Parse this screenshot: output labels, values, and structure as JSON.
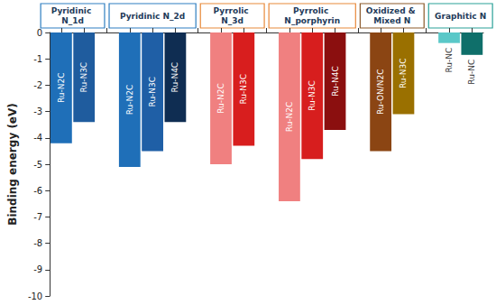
{
  "chart_data": {
    "type": "bar",
    "y_label": "Binding energy (eV)",
    "ylim": [
      -10,
      0
    ],
    "yticks": [
      -10,
      -9,
      -8,
      -7,
      -6,
      -5,
      -4,
      -3,
      -2,
      -1,
      0
    ],
    "grid": false,
    "tick_labels": "y",
    "data_labels": true,
    "groups": [
      {
        "name": "Pyridinic N_1d",
        "color": "#2f7fc1",
        "categories": [
          "Ru-N2C",
          "Ru-N3C"
        ],
        "values": [
          -4.2,
          -3.4
        ],
        "colors": [
          "#1f6fb8",
          "#1f5c9e"
        ]
      },
      {
        "name": "Pyridinic N_2d",
        "color": "#2f7fc1",
        "categories": [
          "Ru-N2C",
          "Ru-N3C",
          "Ru-N4C"
        ],
        "values": [
          -5.1,
          -4.5,
          -3.4
        ],
        "colors": [
          "#1f6fb8",
          "#1f5fa6",
          "#0f2d52"
        ]
      },
      {
        "name": "Pyrrolic N_3d",
        "color": "#e8893a",
        "categories": [
          "Ru-N2C",
          "Ru-N3C"
        ],
        "values": [
          -5.0,
          -4.3
        ],
        "colors": [
          "#f08080",
          "#d81e1e"
        ]
      },
      {
        "name": "Pyrrolic N_porphyrin",
        "color": "#e8893a",
        "categories": [
          "Ru-N2C",
          "Ru-N3C",
          "Ru-N4C"
        ],
        "values": [
          -6.4,
          -4.8,
          -3.7
        ],
        "colors": [
          "#f08080",
          "#d71e1e",
          "#8b0f0f"
        ]
      },
      {
        "name": "Oxidized & Mixed N",
        "color": "#8b5a2b",
        "categories": [
          "Ru-ON/N2C",
          "Ru-N3C"
        ],
        "values": [
          -4.5,
          -3.1
        ],
        "colors": [
          "#8b4513",
          "#9a7000"
        ]
      },
      {
        "name": "Graphitic N",
        "color": "#2aa198",
        "categories": [
          "Ru-NC",
          "Ru-NC"
        ],
        "values": [
          -0.4,
          -0.85
        ],
        "colors": [
          "#5ac8c8",
          "#0f6f6a"
        ]
      }
    ]
  }
}
